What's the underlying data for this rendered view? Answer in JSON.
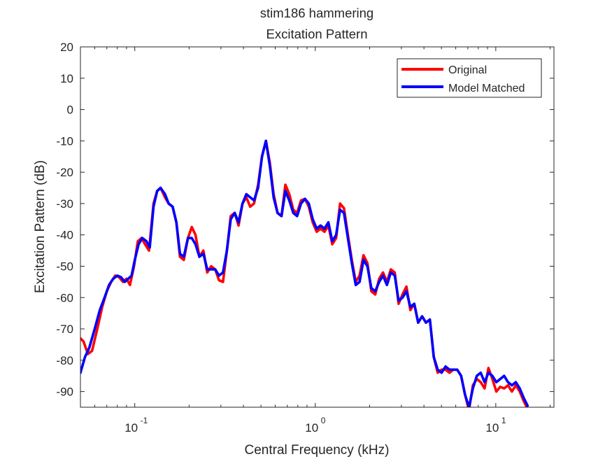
{
  "chart_data": {
    "type": "line",
    "title": "stim186 hammering",
    "subtitle": "Excitation Pattern",
    "xlabel": "Central Frequency (kHz)",
    "ylabel": "Excitation Pattern (dB)",
    "xscale": "log",
    "xlim": [
      0.05,
      21
    ],
    "ylim": [
      -95,
      20
    ],
    "grid": false,
    "legend_position": "top-right",
    "x_ticks": [
      {
        "value": 0.1,
        "base": "10",
        "exp": "-1"
      },
      {
        "value": 1,
        "base": "10",
        "exp": "0"
      },
      {
        "value": 10,
        "base": "10",
        "exp": "1"
      }
    ],
    "y_ticks": [
      20,
      10,
      0,
      -10,
      -20,
      -30,
      -40,
      -50,
      -60,
      -70,
      -80,
      -90
    ],
    "series": [
      {
        "name": "Original",
        "color": "#ff0000",
        "points": [
          [
            0.05,
            -73
          ],
          [
            0.052,
            -74
          ],
          [
            0.055,
            -78
          ],
          [
            0.058,
            -77
          ],
          [
            0.062,
            -70
          ],
          [
            0.066,
            -63
          ],
          [
            0.07,
            -58
          ],
          [
            0.074,
            -55
          ],
          [
            0.078,
            -53
          ],
          [
            0.082,
            -53.5
          ],
          [
            0.086,
            -55
          ],
          [
            0.09,
            -54
          ],
          [
            0.094,
            -56
          ],
          [
            0.099,
            -50
          ],
          [
            0.104,
            -42
          ],
          [
            0.109,
            -41
          ],
          [
            0.114,
            -43
          ],
          [
            0.12,
            -45
          ],
          [
            0.127,
            -30
          ],
          [
            0.133,
            -26
          ],
          [
            0.139,
            -25
          ],
          [
            0.147,
            -28
          ],
          [
            0.154,
            -30
          ],
          [
            0.162,
            -31
          ],
          [
            0.17,
            -36
          ],
          [
            0.178,
            -47
          ],
          [
            0.187,
            -48
          ],
          [
            0.197,
            -41
          ],
          [
            0.207,
            -37.5
          ],
          [
            0.217,
            -40
          ],
          [
            0.228,
            -47
          ],
          [
            0.24,
            -45
          ],
          [
            0.252,
            -52
          ],
          [
            0.265,
            -50
          ],
          [
            0.279,
            -51
          ],
          [
            0.293,
            -54.5
          ],
          [
            0.308,
            -55
          ],
          [
            0.324,
            -45
          ],
          [
            0.34,
            -34
          ],
          [
            0.358,
            -33
          ],
          [
            0.376,
            -37
          ],
          [
            0.395,
            -30
          ],
          [
            0.415,
            -28
          ],
          [
            0.436,
            -31
          ],
          [
            0.458,
            -30
          ],
          [
            0.482,
            -24
          ],
          [
            0.507,
            -15
          ],
          [
            0.533,
            -10
          ],
          [
            0.56,
            -17
          ],
          [
            0.588,
            -27
          ],
          [
            0.618,
            -33
          ],
          [
            0.65,
            -34
          ],
          [
            0.683,
            -24
          ],
          [
            0.718,
            -27
          ],
          [
            0.755,
            -32
          ],
          [
            0.793,
            -33
          ],
          [
            0.834,
            -29
          ],
          [
            0.877,
            -28.5
          ],
          [
            0.921,
            -31
          ],
          [
            0.968,
            -36
          ],
          [
            1.018,
            -39
          ],
          [
            1.07,
            -38
          ],
          [
            1.124,
            -39
          ],
          [
            1.182,
            -37
          ],
          [
            1.242,
            -43
          ],
          [
            1.305,
            -41
          ],
          [
            1.372,
            -30
          ],
          [
            1.442,
            -31.5
          ],
          [
            1.516,
            -40
          ],
          [
            1.593,
            -48
          ],
          [
            1.675,
            -55
          ],
          [
            1.76,
            -53
          ],
          [
            1.85,
            -46.5
          ],
          [
            1.944,
            -49
          ],
          [
            2.044,
            -58
          ],
          [
            2.148,
            -59
          ],
          [
            2.258,
            -54
          ],
          [
            2.373,
            -52
          ],
          [
            2.494,
            -55
          ],
          [
            2.622,
            -51
          ],
          [
            2.756,
            -52
          ],
          [
            2.896,
            -62
          ],
          [
            3.044,
            -59
          ],
          [
            3.2,
            -56.5
          ],
          [
            3.363,
            -64
          ],
          [
            3.535,
            -62
          ],
          [
            3.716,
            -68
          ],
          [
            3.906,
            -66
          ],
          [
            4.105,
            -68
          ],
          [
            4.315,
            -67
          ],
          [
            4.535,
            -79
          ],
          [
            4.767,
            -84
          ],
          [
            5.011,
            -83
          ],
          [
            5.267,
            -83
          ],
          [
            5.536,
            -84
          ],
          [
            5.819,
            -83
          ],
          [
            6.116,
            -83
          ],
          [
            6.429,
            -85
          ],
          [
            6.757,
            -91
          ],
          [
            7.102,
            -96
          ],
          [
            7.465,
            -88
          ],
          [
            7.847,
            -86
          ],
          [
            8.248,
            -87
          ],
          [
            8.669,
            -89
          ],
          [
            9.112,
            -82.5
          ],
          [
            9.578,
            -86
          ],
          [
            10.067,
            -90
          ],
          [
            10.582,
            -88.5
          ],
          [
            11.122,
            -89
          ],
          [
            11.69,
            -88
          ],
          [
            12.288,
            -90
          ],
          [
            12.915,
            -88
          ],
          [
            13.576,
            -90
          ],
          [
            14.269,
            -93
          ],
          [
            15.0,
            -95.5
          ]
        ]
      },
      {
        "name": "Model Matched",
        "color": "#0000ff",
        "points": [
          [
            0.05,
            -84
          ],
          [
            0.053,
            -79
          ],
          [
            0.056,
            -76
          ],
          [
            0.06,
            -70
          ],
          [
            0.064,
            -64
          ],
          [
            0.068,
            -60
          ],
          [
            0.072,
            -56
          ],
          [
            0.076,
            -54
          ],
          [
            0.08,
            -53
          ],
          [
            0.084,
            -53.5
          ],
          [
            0.088,
            -55
          ],
          [
            0.092,
            -54
          ],
          [
            0.096,
            -53
          ],
          [
            0.1,
            -48
          ],
          [
            0.105,
            -43
          ],
          [
            0.11,
            -41
          ],
          [
            0.116,
            -42
          ],
          [
            0.121,
            -44
          ],
          [
            0.127,
            -31
          ],
          [
            0.133,
            -26
          ],
          [
            0.139,
            -25
          ],
          [
            0.147,
            -27
          ],
          [
            0.154,
            -30
          ],
          [
            0.162,
            -31
          ],
          [
            0.17,
            -36
          ],
          [
            0.178,
            -46
          ],
          [
            0.187,
            -47
          ],
          [
            0.197,
            -41
          ],
          [
            0.207,
            -41
          ],
          [
            0.217,
            -43
          ],
          [
            0.228,
            -47
          ],
          [
            0.24,
            -46
          ],
          [
            0.252,
            -51
          ],
          [
            0.265,
            -51
          ],
          [
            0.279,
            -51
          ],
          [
            0.293,
            -53
          ],
          [
            0.308,
            -52
          ],
          [
            0.324,
            -45
          ],
          [
            0.34,
            -35
          ],
          [
            0.358,
            -33
          ],
          [
            0.376,
            -36
          ],
          [
            0.395,
            -30
          ],
          [
            0.415,
            -27
          ],
          [
            0.436,
            -28
          ],
          [
            0.458,
            -29
          ],
          [
            0.482,
            -25
          ],
          [
            0.507,
            -15
          ],
          [
            0.533,
            -10
          ],
          [
            0.56,
            -18
          ],
          [
            0.588,
            -28
          ],
          [
            0.618,
            -33
          ],
          [
            0.65,
            -34
          ],
          [
            0.683,
            -26
          ],
          [
            0.718,
            -29
          ],
          [
            0.755,
            -33
          ],
          [
            0.793,
            -34
          ],
          [
            0.834,
            -30
          ],
          [
            0.877,
            -28.5
          ],
          [
            0.921,
            -30
          ],
          [
            0.968,
            -35
          ],
          [
            1.018,
            -38
          ],
          [
            1.07,
            -37
          ],
          [
            1.124,
            -38
          ],
          [
            1.182,
            -36
          ],
          [
            1.242,
            -42
          ],
          [
            1.305,
            -40
          ],
          [
            1.372,
            -32
          ],
          [
            1.442,
            -33
          ],
          [
            1.516,
            -41
          ],
          [
            1.593,
            -49
          ],
          [
            1.675,
            -56
          ],
          [
            1.76,
            -55
          ],
          [
            1.85,
            -48
          ],
          [
            1.944,
            -50
          ],
          [
            2.044,
            -57
          ],
          [
            2.148,
            -58
          ],
          [
            2.258,
            -55
          ],
          [
            2.373,
            -53
          ],
          [
            2.494,
            -56
          ],
          [
            2.622,
            -52
          ],
          [
            2.756,
            -53
          ],
          [
            2.896,
            -61
          ],
          [
            3.044,
            -60
          ],
          [
            3.2,
            -58
          ],
          [
            3.363,
            -63
          ],
          [
            3.535,
            -62
          ],
          [
            3.716,
            -68
          ],
          [
            3.906,
            -66
          ],
          [
            4.105,
            -68
          ],
          [
            4.315,
            -67
          ],
          [
            4.535,
            -79
          ],
          [
            4.767,
            -83
          ],
          [
            5.011,
            -84
          ],
          [
            5.267,
            -82
          ],
          [
            5.536,
            -83
          ],
          [
            5.819,
            -83
          ],
          [
            6.116,
            -83
          ],
          [
            6.429,
            -85
          ],
          [
            6.757,
            -91
          ],
          [
            7.102,
            -95
          ],
          [
            7.465,
            -89
          ],
          [
            7.847,
            -85
          ],
          [
            8.248,
            -84
          ],
          [
            8.669,
            -87
          ],
          [
            9.112,
            -84
          ],
          [
            9.578,
            -85
          ],
          [
            10.067,
            -87
          ],
          [
            10.582,
            -86
          ],
          [
            11.122,
            -85
          ],
          [
            11.69,
            -87
          ],
          [
            12.288,
            -88
          ],
          [
            12.915,
            -87
          ],
          [
            13.576,
            -89
          ],
          [
            14.269,
            -92
          ],
          [
            15.0,
            -94.5
          ]
        ]
      }
    ]
  }
}
